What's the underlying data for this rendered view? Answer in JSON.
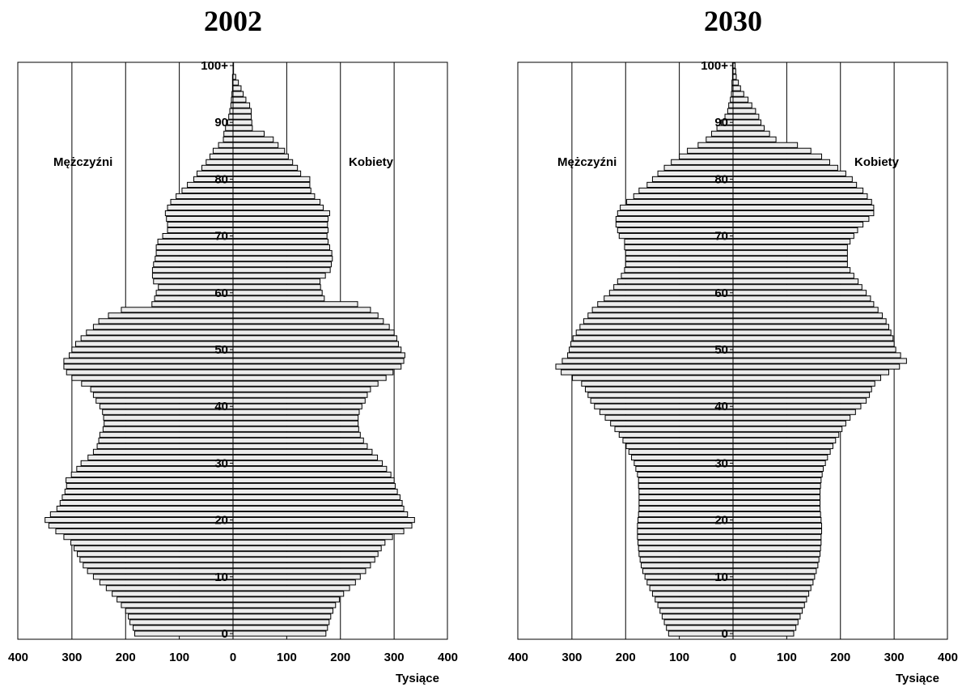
{
  "chart_data": [
    {
      "type": "bar",
      "title": "2002",
      "xlabel": "Tysiące",
      "x_ticks": [
        "400",
        "300",
        "200",
        "100",
        "0",
        "100",
        "200",
        "300",
        "400"
      ],
      "xlim": [
        -400,
        400
      ],
      "y_ticks": [
        "0",
        "10",
        "20",
        "30",
        "40",
        "50",
        "60",
        "70",
        "80",
        "90",
        "100+"
      ],
      "left_label": "Mężczyźni",
      "right_label": "Kobiety",
      "grid": true,
      "categories_note": "age 0..100+",
      "series": [
        {
          "name": "Mężczyźni",
          "values": [
            183,
            186,
            192,
            195,
            200,
            208,
            216,
            225,
            236,
            248,
            260,
            271,
            279,
            285,
            290,
            296,
            302,
            315,
            330,
            343,
            350,
            340,
            328,
            322,
            318,
            313,
            310,
            311,
            301,
            291,
            283,
            270,
            260,
            253,
            250,
            248,
            242,
            240,
            241,
            243,
            248,
            255,
            260,
            265,
            282,
            300,
            310,
            315,
            315,
            305,
            300,
            293,
            283,
            273,
            260,
            250,
            232,
            208,
            151,
            146,
            143,
            139,
            148,
            150,
            150,
            148,
            145,
            143,
            143,
            140,
            131,
            122,
            122,
            124,
            126,
            122,
            116,
            106,
            95,
            85,
            73,
            67,
            58,
            50,
            43,
            37,
            27,
            18,
            17,
            14,
            10,
            8,
            6,
            4,
            3,
            2,
            1,
            1,
            1,
            0,
            0
          ]
        },
        {
          "name": "Kobiety",
          "values": [
            173,
            176,
            179,
            182,
            186,
            191,
            198,
            206,
            217,
            228,
            237,
            247,
            256,
            264,
            270,
            276,
            283,
            297,
            318,
            333,
            338,
            325,
            318,
            315,
            311,
            306,
            302,
            300,
            294,
            286,
            278,
            269,
            259,
            250,
            243,
            237,
            234,
            233,
            233,
            235,
            240,
            246,
            250,
            256,
            270,
            285,
            298,
            313,
            318,
            320,
            313,
            308,
            305,
            300,
            291,
            280,
            270,
            256,
            232,
            170,
            166,
            163,
            162,
            172,
            181,
            183,
            185,
            184,
            180,
            177,
            175,
            177,
            176,
            177,
            180,
            168,
            162,
            152,
            145,
            143,
            143,
            126,
            120,
            111,
            103,
            96,
            84,
            75,
            58,
            36,
            35,
            34,
            34,
            31,
            24,
            19,
            15,
            10,
            5,
            1,
            1
          ]
        }
      ]
    },
    {
      "type": "bar",
      "title": "2030",
      "xlabel": "Tysiące",
      "x_ticks": [
        "400",
        "300",
        "200",
        "100",
        "0",
        "100",
        "200",
        "300",
        "400"
      ],
      "xlim": [
        -400,
        400
      ],
      "y_ticks": [
        "0",
        "10",
        "20",
        "30",
        "40",
        "50",
        "60",
        "70",
        "80",
        "90",
        "100+"
      ],
      "left_label": "Mężczyźni",
      "right_label": "Kobiety",
      "grid": true,
      "categories_note": "age 0..100+",
      "series": [
        {
          "name": "Mężczyźni",
          "values": [
            120,
            124,
            128,
            132,
            136,
            140,
            145,
            150,
            155,
            160,
            164,
            168,
            171,
            173,
            175,
            176,
            177,
            178,
            178,
            178,
            177,
            176,
            175,
            175,
            175,
            175,
            176,
            176,
            178,
            181,
            184,
            189,
            194,
            199,
            205,
            212,
            220,
            228,
            238,
            248,
            258,
            265,
            270,
            275,
            282,
            299,
            320,
            330,
            318,
            308,
            305,
            302,
            298,
            292,
            285,
            278,
            270,
            262,
            252,
            240,
            230,
            222,
            215,
            208,
            202,
            200,
            200,
            200,
            202,
            202,
            212,
            215,
            218,
            218,
            215,
            210,
            198,
            185,
            175,
            160,
            150,
            140,
            128,
            115,
            100,
            85,
            65,
            50,
            40,
            30,
            22,
            15,
            10,
            8,
            5,
            3,
            2,
            2,
            1,
            1,
            1
          ]
        },
        {
          "name": "Kobiety",
          "values": [
            113,
            117,
            121,
            125,
            129,
            133,
            137,
            141,
            145,
            149,
            152,
            155,
            158,
            160,
            162,
            163,
            164,
            164,
            165,
            165,
            164,
            163,
            162,
            162,
            162,
            162,
            163,
            164,
            166,
            168,
            172,
            176,
            181,
            186,
            191,
            197,
            203,
            210,
            218,
            228,
            238,
            248,
            254,
            258,
            264,
            275,
            290,
            310,
            323,
            312,
            303,
            300,
            298,
            294,
            290,
            285,
            278,
            270,
            262,
            256,
            248,
            240,
            233,
            225,
            218,
            213,
            213,
            213,
            213,
            218,
            225,
            232,
            242,
            253,
            262,
            262,
            258,
            250,
            242,
            230,
            222,
            210,
            195,
            180,
            165,
            145,
            120,
            80,
            68,
            58,
            52,
            48,
            42,
            35,
            28,
            20,
            14,
            10,
            6,
            5,
            4
          ]
        }
      ]
    }
  ]
}
